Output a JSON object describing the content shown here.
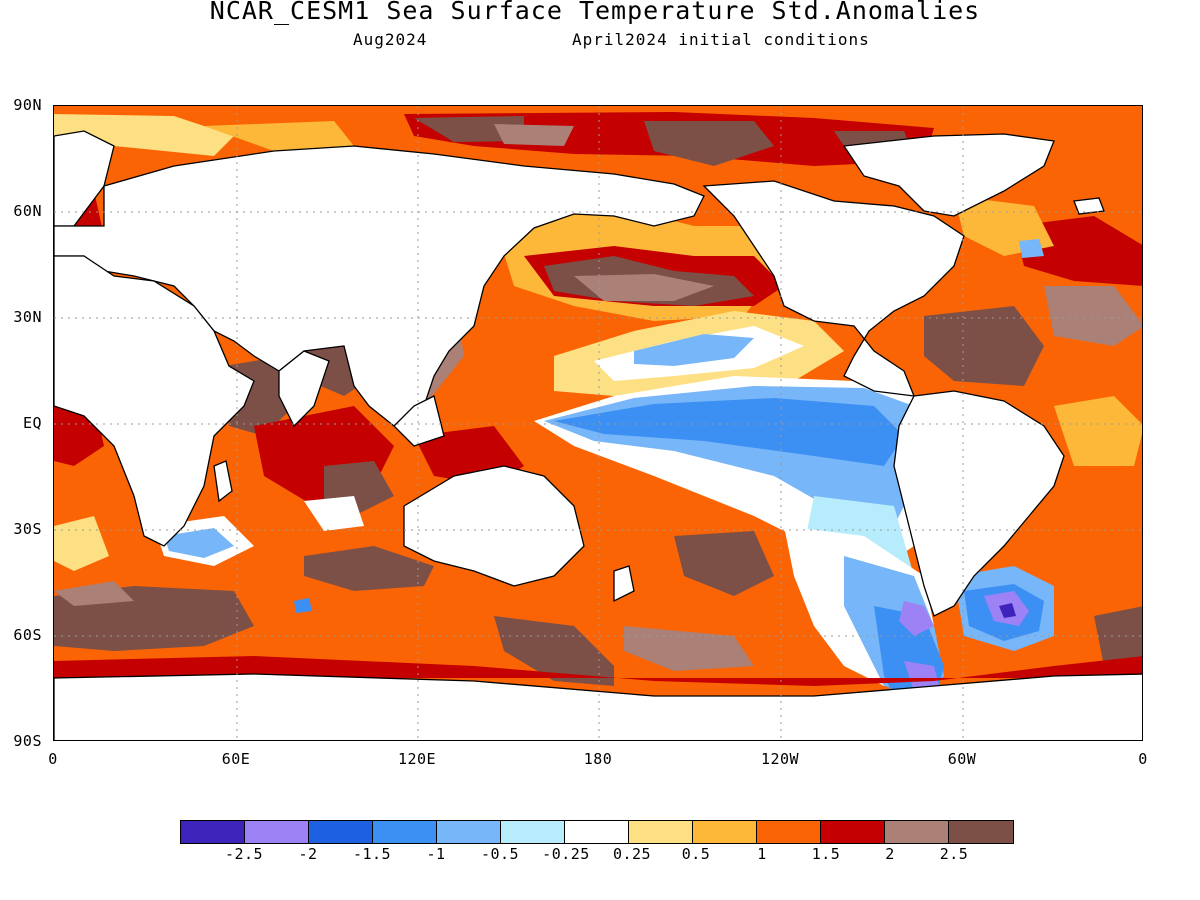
{
  "title": "NCAR_CESM1 Sea Surface Temperature Std.Anomalies",
  "subtitle_left": "Aug2024",
  "subtitle_right": "April2024 initial conditions",
  "y_axis_labels": [
    "90N",
    "60N",
    "30N",
    "EQ",
    "30S",
    "60S",
    "90S"
  ],
  "x_axis_labels": [
    "0",
    "60E",
    "120E",
    "180",
    "120W",
    "60W",
    "0"
  ],
  "colorbar": {
    "colors": [
      "#3d23b9",
      "#9d82f5",
      "#1d60e1",
      "#3c8ff3",
      "#77b6f8",
      "#b6ecfb",
      "#ffffff",
      "#fee084",
      "#fdb839",
      "#fb6404",
      "#c40001",
      "#aa8077",
      "#7d5047"
    ],
    "tick_labels": [
      "-2.5",
      "-2",
      "-1.5",
      "-1",
      "-0.5",
      "-0.25",
      "0.25",
      "0.5",
      "1",
      "1.5",
      "2",
      "2.5"
    ]
  },
  "map": {
    "domain": "global",
    "lon_range": [
      0,
      360
    ],
    "lat_range": [
      -90,
      90
    ],
    "gridlines": "dotted",
    "ocean_base_color": "#fb6404",
    "land_color": "#ffffff",
    "coastline_color": "#000000"
  }
}
